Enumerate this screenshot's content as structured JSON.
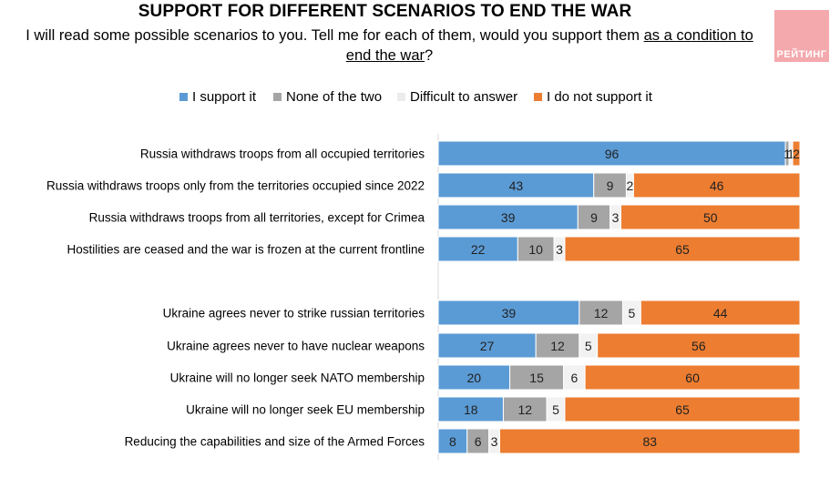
{
  "header": {
    "title": "SUPPORT FOR DIFFERENT SCENARIOS TO END THE WAR",
    "subtitle_part1": "I will read some possible scenarios to you. Tell me for each of them, would you support them ",
    "subtitle_underlined_a": "as a condition to",
    "subtitle_underlined_b": "end the war",
    "subtitle_end": "?",
    "logo_text": "РЕЙТИНГ"
  },
  "colors": {
    "support": "#5b9bd5",
    "none": "#a5a5a5",
    "difficult": "#f2f2f2",
    "not_support": "#ed7d31"
  },
  "chart_data": {
    "type": "bar",
    "orientation": "horizontal",
    "stacked": true,
    "xlim": [
      0,
      100
    ],
    "legend_position": "top",
    "categories": [
      "Russia withdraws troops from all occupied territories",
      "Russia withdraws troops only from the territories occupied since 2022",
      "Russia withdraws troops from all territories, except for Crimea",
      "Hostilities are ceased and the war is frozen at the current frontline",
      "Ukraine agrees never to strike russian territories",
      "Ukraine agrees never to have nuclear weapons",
      "Ukraine will no longer seek NATO membership",
      "Ukraine will no longer seek EU membership",
      "Reducing the capabilities and size of the Armed Forces"
    ],
    "groups": [
      [
        0,
        1,
        2,
        3
      ],
      [
        4,
        5,
        6,
        7,
        8
      ]
    ],
    "series": [
      {
        "name": "I support it",
        "color_key": "support",
        "values": [
          96,
          43,
          39,
          22,
          39,
          27,
          20,
          18,
          8
        ]
      },
      {
        "name": "None of the two",
        "color_key": "none",
        "values": [
          1,
          9,
          9,
          10,
          12,
          12,
          15,
          12,
          6
        ]
      },
      {
        "name": "Difficult to answer",
        "color_key": "difficult",
        "values": [
          1,
          2,
          3,
          3,
          5,
          5,
          6,
          5,
          3
        ]
      },
      {
        "name": "I do not support it",
        "color_key": "not_support",
        "values": [
          2,
          46,
          50,
          65,
          44,
          56,
          60,
          65,
          83
        ]
      }
    ]
  }
}
